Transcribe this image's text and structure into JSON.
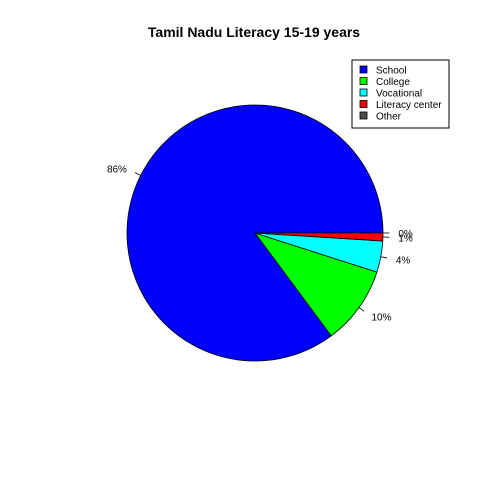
{
  "chart_data": {
    "type": "pie",
    "title": "Tamil Nadu Literacy 15-19 years",
    "legend_position": "top-right",
    "categories": [
      "School",
      "College",
      "Vocational",
      "Literacy center",
      "Other"
    ],
    "values": [
      86,
      10,
      4,
      1,
      0
    ],
    "labels": [
      "86%",
      "10%",
      "4%",
      "1%",
      "0%"
    ],
    "colors": [
      "#0000FF",
      "#00FF00",
      "#00FFFF",
      "#FF0000",
      "#4D4D4D"
    ]
  }
}
